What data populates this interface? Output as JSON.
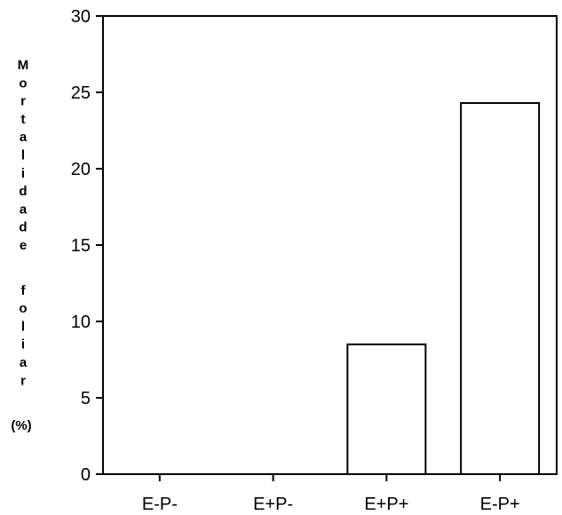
{
  "chart_data": {
    "type": "bar",
    "title": "",
    "xlabel": "",
    "ylabel": "Mortalidade foliar (%)",
    "categories": [
      "E-P-",
      "E+P-",
      "E+P+",
      "E-P+"
    ],
    "values": [
      0,
      0,
      8.5,
      24.3
    ],
    "ylim": [
      0,
      30
    ],
    "yticks": [
      0,
      5,
      10,
      15,
      20,
      25,
      30
    ],
    "grid": false,
    "legend": "none",
    "bar_fill": "#ffffff",
    "bar_stroke": "#000000"
  }
}
